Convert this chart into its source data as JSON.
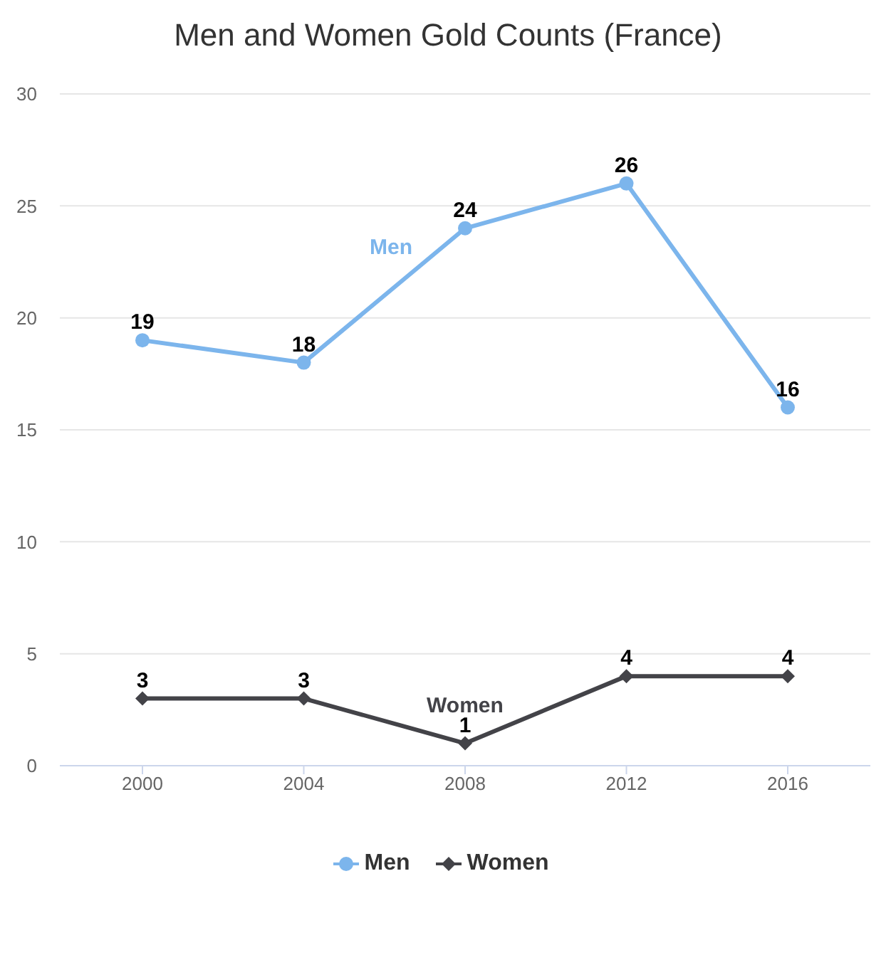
{
  "chart_data": {
    "type": "line",
    "title": "Men and Women Gold Counts (France)",
    "categories": [
      "2000",
      "2004",
      "2008",
      "2012",
      "2016"
    ],
    "series": [
      {
        "name": "Men",
        "color": "#7cb5ec",
        "values": [
          19,
          18,
          24,
          26,
          16
        ],
        "marker": "circle"
      },
      {
        "name": "Women",
        "color": "#434348",
        "values": [
          3,
          3,
          1,
          4,
          4
        ],
        "marker": "diamond"
      }
    ],
    "ylim": [
      0,
      30
    ],
    "yticks": [
      0,
      5,
      10,
      15,
      20,
      25,
      30
    ],
    "grid": "y",
    "legend": "bottom",
    "data_labels": true
  }
}
